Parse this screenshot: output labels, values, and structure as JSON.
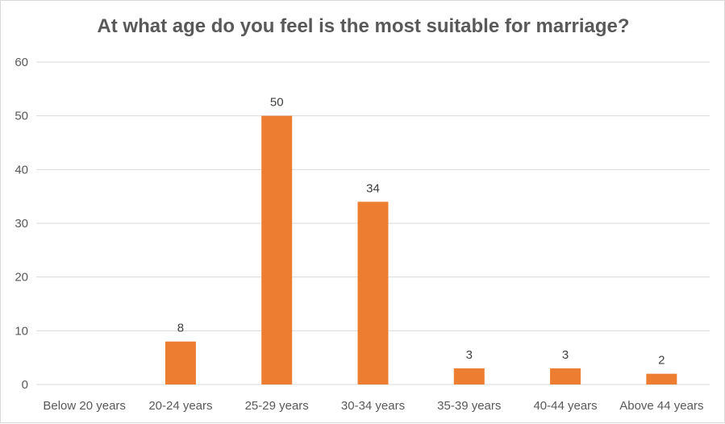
{
  "chart_data": {
    "type": "bar",
    "title": "At what age do you feel is the most suitable for marriage?",
    "xlabel": "",
    "ylabel": "",
    "categories": [
      "Below 20 years",
      "20-24 years",
      "25-29 years",
      "30-34 years",
      "35-39 years",
      "40-44 years",
      "Above 44 years"
    ],
    "values": [
      0,
      8,
      50,
      34,
      3,
      3,
      2
    ],
    "data_labels": [
      "",
      "8",
      "50",
      "34",
      "3",
      "3",
      "2"
    ],
    "ylim": [
      0,
      60
    ],
    "yticks": [
      0,
      10,
      20,
      30,
      40,
      50,
      60
    ],
    "grid": true,
    "legend": "none",
    "bar_color": "#ED7D31"
  }
}
